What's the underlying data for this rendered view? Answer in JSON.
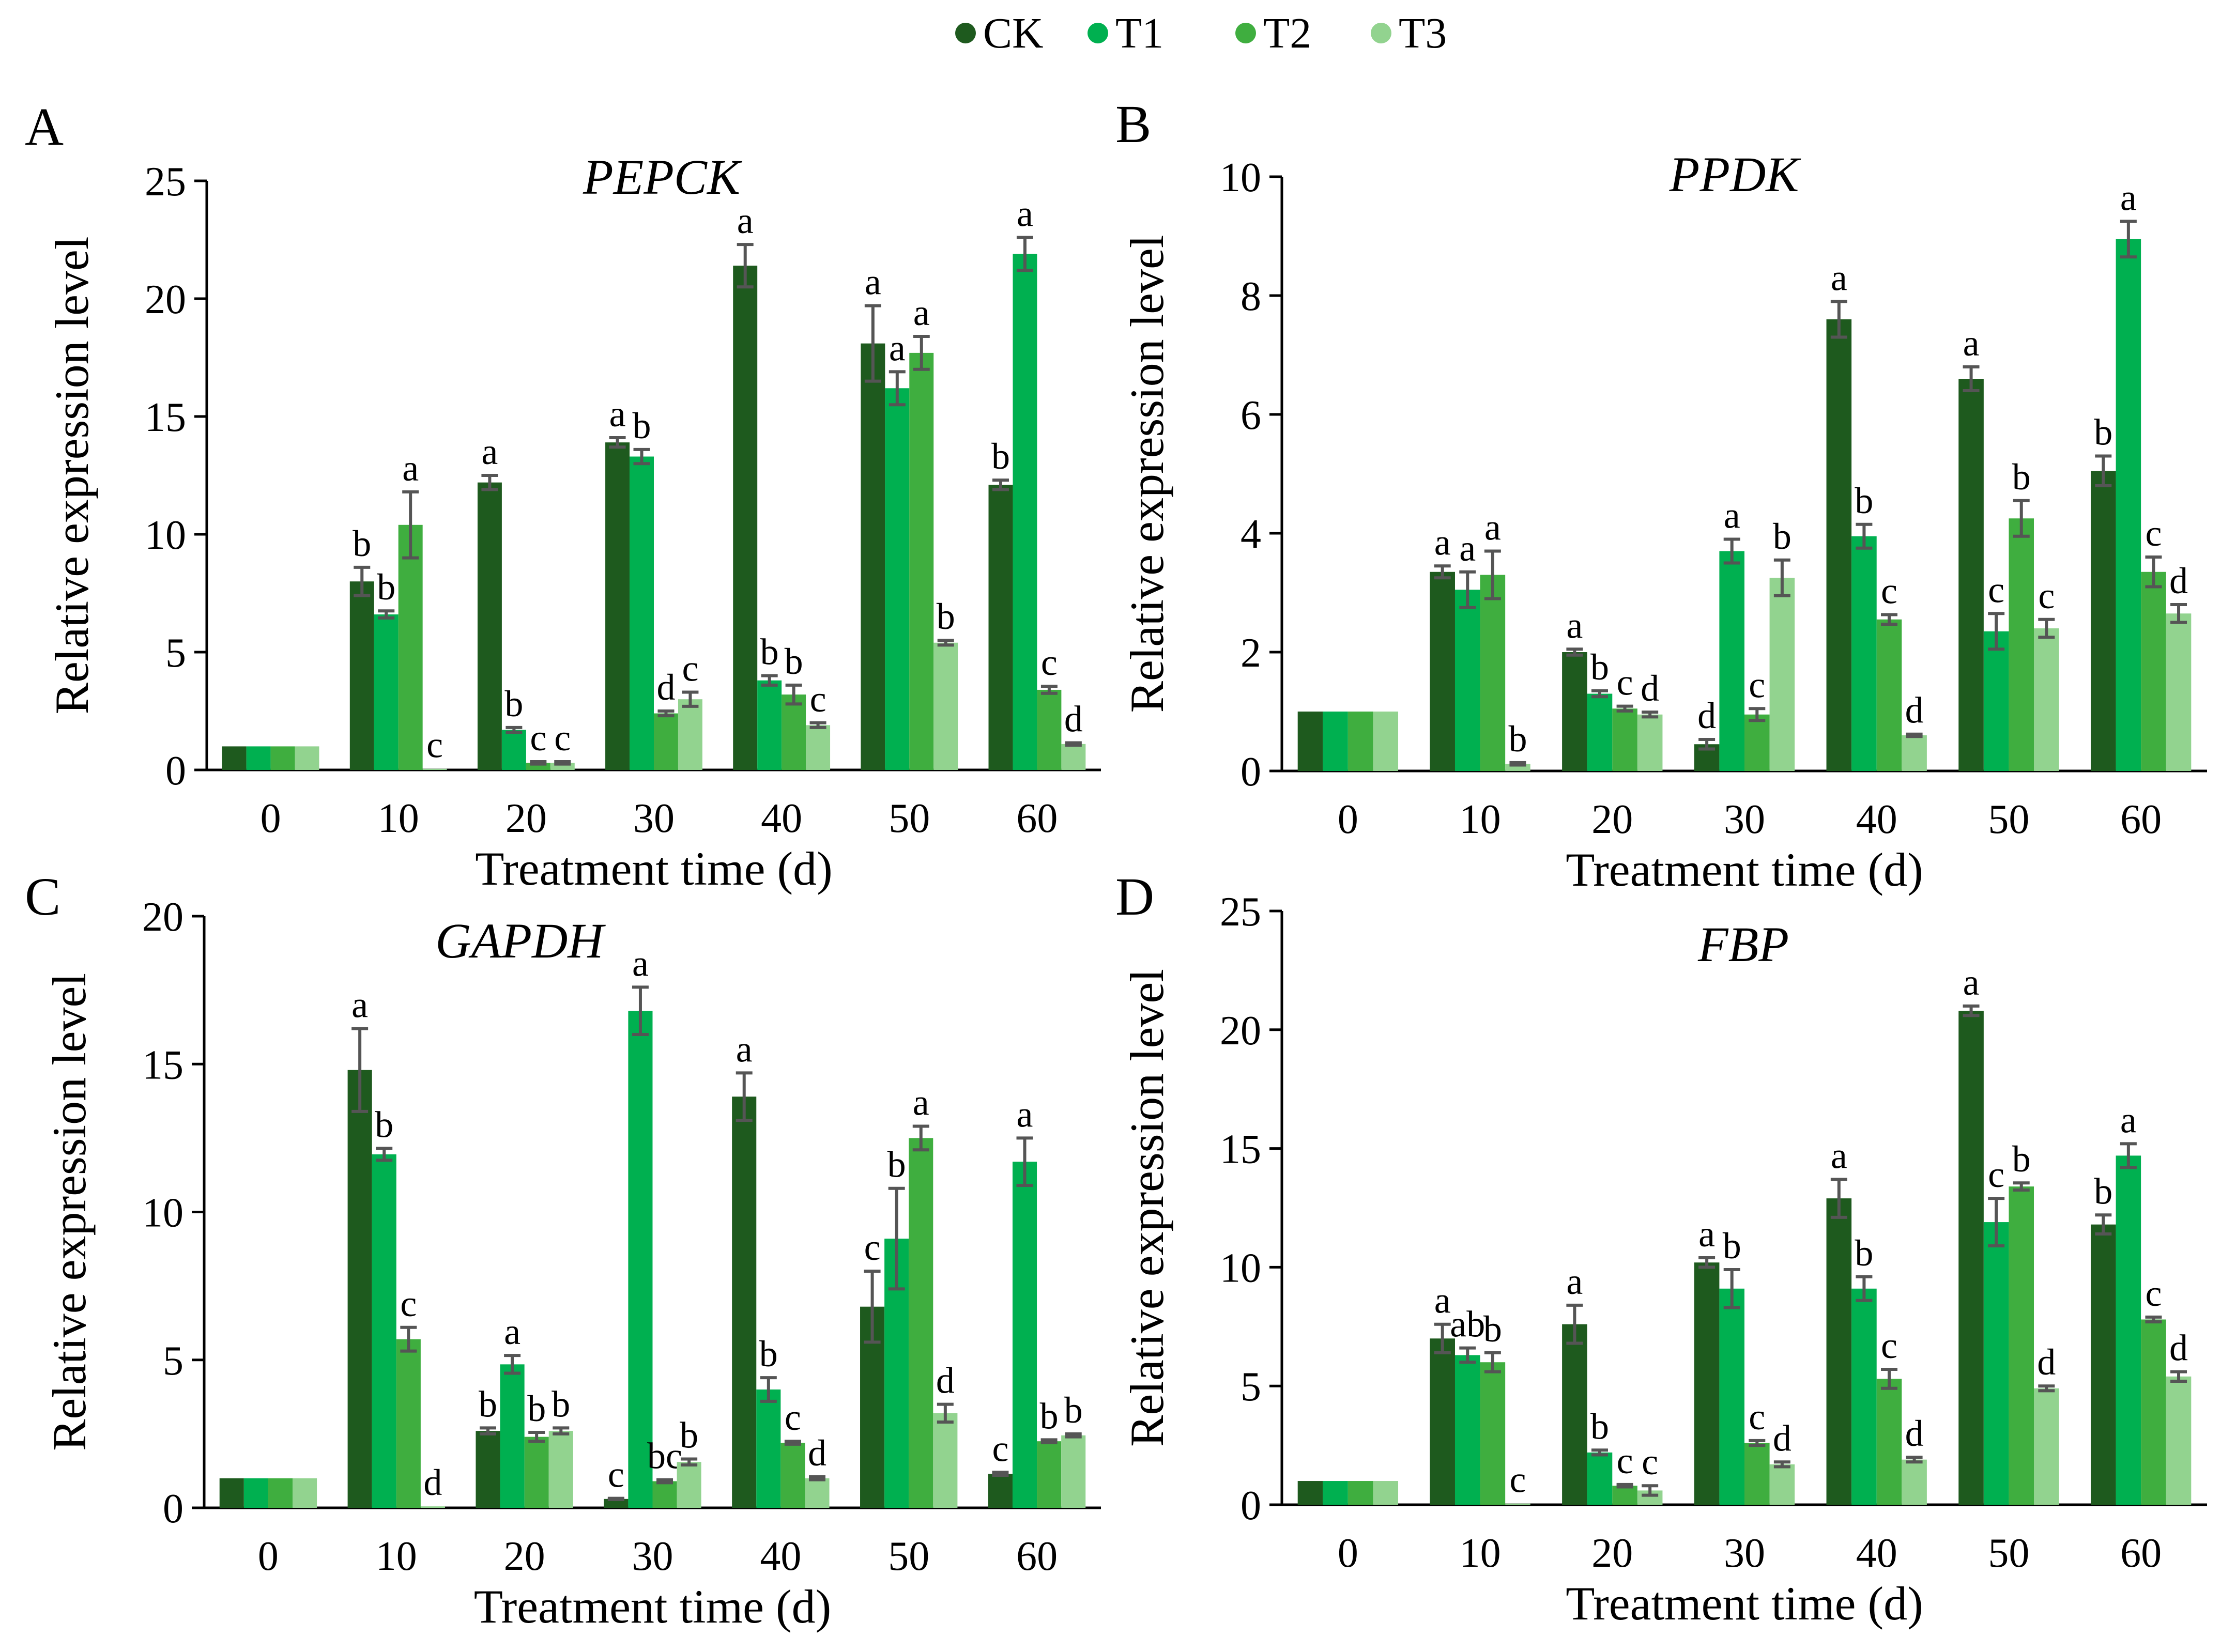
{
  "legend": {
    "series": [
      {
        "name": "CK",
        "color": "#1e5a1e"
      },
      {
        "name": "T1",
        "color": "#00b050"
      },
      {
        "name": "T2",
        "color": "#3fae3f"
      },
      {
        "name": "T3",
        "color": "#92d38f"
      }
    ]
  },
  "chart_data": [
    {
      "type": "bar",
      "panel": "A",
      "title": "PEPCK",
      "xlabel": "Treatment time (d)",
      "ylabel": "Relative expression level",
      "categories": [
        "0",
        "10",
        "20",
        "30",
        "40",
        "50",
        "60"
      ],
      "ylim": [
        0,
        25
      ],
      "yticks": [
        0,
        5,
        10,
        15,
        20,
        25
      ],
      "series": [
        {
          "name": "CK",
          "values": [
            1,
            8.0,
            12.2,
            13.9,
            21.4,
            18.1,
            12.1
          ],
          "errors": [
            0,
            0.6,
            0.3,
            0.2,
            0.9,
            1.6,
            0.2
          ],
          "labels": [
            "",
            "b",
            "a",
            "a",
            "a",
            "a",
            "b"
          ]
        },
        {
          "name": "T1",
          "values": [
            1,
            6.6,
            1.7,
            13.3,
            3.8,
            16.2,
            21.9
          ],
          "errors": [
            0,
            0.15,
            0.1,
            0.3,
            0.2,
            0.7,
            0.7
          ],
          "labels": [
            "",
            "b",
            "b",
            "b",
            "b",
            "a",
            "a"
          ]
        },
        {
          "name": "T2",
          "values": [
            1,
            10.4,
            0.3,
            2.4,
            3.2,
            17.7,
            3.4
          ],
          "errors": [
            0,
            1.4,
            0.05,
            0.1,
            0.4,
            0.7,
            0.15
          ],
          "labels": [
            "",
            "a",
            "c",
            "d",
            "b",
            "a",
            "c"
          ]
        },
        {
          "name": "T3",
          "values": [
            1,
            0.05,
            0.3,
            3.0,
            1.9,
            5.4,
            1.1
          ],
          "errors": [
            0,
            0,
            0.05,
            0.3,
            0.1,
            0.1,
            0.05
          ],
          "labels": [
            "",
            "c",
            "c",
            "c",
            "c",
            "b",
            "d"
          ]
        }
      ]
    },
    {
      "type": "bar",
      "panel": "B",
      "title": "PPDK",
      "xlabel": "Treatment time (d)",
      "ylabel": "Relative expression level",
      "categories": [
        "0",
        "10",
        "20",
        "30",
        "40",
        "50",
        "60"
      ],
      "ylim": [
        0,
        10
      ],
      "yticks": [
        0,
        2,
        4,
        6,
        8,
        10
      ],
      "series": [
        {
          "name": "CK",
          "values": [
            1,
            3.35,
            2.0,
            0.45,
            7.6,
            6.6,
            5.05
          ],
          "errors": [
            0,
            0.1,
            0.05,
            0.08,
            0.3,
            0.2,
            0.25
          ],
          "labels": [
            "",
            "a",
            "a",
            "d",
            "a",
            "a",
            "b"
          ]
        },
        {
          "name": "T1",
          "values": [
            1,
            3.05,
            1.3,
            3.7,
            3.95,
            2.35,
            8.95
          ],
          "errors": [
            0,
            0.3,
            0.05,
            0.2,
            0.2,
            0.3,
            0.3
          ],
          "labels": [
            "",
            "a",
            "b",
            "a",
            "b",
            "c",
            "a"
          ]
        },
        {
          "name": "T2",
          "values": [
            1,
            3.3,
            1.05,
            0.95,
            2.55,
            4.25,
            3.35
          ],
          "errors": [
            0,
            0.4,
            0.04,
            0.1,
            0.08,
            0.3,
            0.25
          ],
          "labels": [
            "",
            "a",
            "c",
            "c",
            "c",
            "b",
            "c"
          ]
        },
        {
          "name": "T3",
          "values": [
            1,
            0.12,
            0.95,
            3.25,
            0.6,
            2.4,
            2.65
          ],
          "errors": [
            0,
            0.02,
            0.04,
            0.3,
            0.02,
            0.15,
            0.15
          ],
          "labels": [
            "",
            "b",
            "d",
            "b",
            "d",
            "c",
            "d"
          ]
        }
      ]
    },
    {
      "type": "bar",
      "panel": "C",
      "title": "GAPDH",
      "xlabel": "Treatment time (d)",
      "ylabel": "Relative expression level",
      "categories": [
        "0",
        "10",
        "20",
        "30",
        "40",
        "50",
        "60"
      ],
      "ylim": [
        0,
        20
      ],
      "yticks": [
        0,
        5,
        10,
        15,
        20
      ],
      "series": [
        {
          "name": "CK",
          "values": [
            1,
            14.8,
            2.6,
            0.3,
            13.9,
            6.8,
            1.15
          ],
          "errors": [
            0,
            1.4,
            0.1,
            0.02,
            0.8,
            1.2,
            0.05
          ],
          "labels": [
            "",
            "a",
            "b",
            "c",
            "a",
            "c",
            "c"
          ]
        },
        {
          "name": "T1",
          "values": [
            1,
            11.95,
            4.85,
            16.8,
            4.0,
            9.1,
            11.7
          ],
          "errors": [
            0,
            0.2,
            0.3,
            0.8,
            0.4,
            1.7,
            0.8
          ],
          "labels": [
            "",
            "b",
            "a",
            "a",
            "b",
            "b",
            "a"
          ]
        },
        {
          "name": "T2",
          "values": [
            1,
            5.7,
            2.4,
            0.9,
            2.2,
            12.5,
            2.25
          ],
          "errors": [
            0,
            0.4,
            0.15,
            0.05,
            0.05,
            0.4,
            0.05
          ],
          "labels": [
            "",
            "c",
            "b",
            "bc",
            "c",
            "a",
            "b"
          ]
        },
        {
          "name": "T3",
          "values": [
            1,
            0.05,
            2.6,
            1.55,
            1.0,
            3.2,
            2.45
          ],
          "errors": [
            0,
            0,
            0.1,
            0.1,
            0.05,
            0.3,
            0.05
          ],
          "labels": [
            "",
            "d",
            "b",
            "b",
            "d",
            "d",
            "b"
          ]
        }
      ]
    },
    {
      "type": "bar",
      "panel": "D",
      "title": "FBP",
      "xlabel": "Treatment time (d)",
      "ylabel": "Relative expression level",
      "categories": [
        "0",
        "10",
        "20",
        "30",
        "40",
        "50",
        "60"
      ],
      "ylim": [
        0,
        25
      ],
      "yticks": [
        0,
        5,
        10,
        15,
        20,
        25
      ],
      "series": [
        {
          "name": "CK",
          "values": [
            1,
            7.0,
            7.6,
            10.2,
            12.9,
            20.8,
            11.8
          ],
          "errors": [
            0,
            0.6,
            0.8,
            0.2,
            0.8,
            0.2,
            0.4
          ],
          "labels": [
            "",
            "a",
            "a",
            "a",
            "a",
            "a",
            "b"
          ]
        },
        {
          "name": "T1",
          "values": [
            1,
            6.3,
            2.2,
            9.1,
            9.1,
            11.9,
            14.7
          ],
          "errors": [
            0,
            0.3,
            0.1,
            0.8,
            0.5,
            1.0,
            0.5
          ],
          "labels": [
            "",
            "ab",
            "b",
            "b",
            "b",
            "c",
            "a"
          ]
        },
        {
          "name": "T2",
          "values": [
            1,
            6.0,
            0.8,
            2.6,
            5.3,
            13.4,
            7.8
          ],
          "errors": [
            0,
            0.4,
            0.05,
            0.1,
            0.4,
            0.15,
            0.1
          ],
          "labels": [
            "",
            "b",
            "c",
            "c",
            "c",
            "b",
            "c"
          ]
        },
        {
          "name": "T3",
          "values": [
            1,
            0.05,
            0.6,
            1.7,
            1.9,
            4.9,
            5.4
          ],
          "errors": [
            0,
            0,
            0.2,
            0.1,
            0.1,
            0.1,
            0.2
          ],
          "labels": [
            "",
            "c",
            "c",
            "d",
            "d",
            "d",
            "d"
          ]
        }
      ]
    }
  ]
}
